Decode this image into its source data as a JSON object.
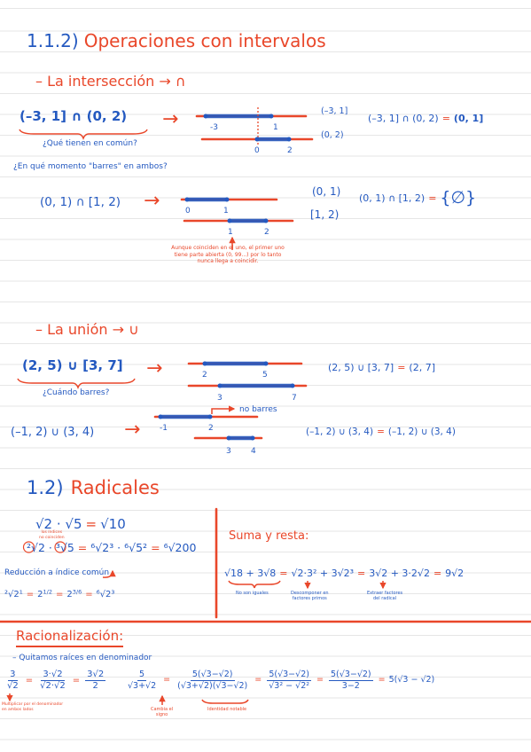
{
  "colors": {
    "blue": "#2459c0",
    "red": "#e9472a",
    "rule": "#e6e6e6"
  },
  "symbols": {
    "eq": "=",
    "arrow": "→"
  },
  "intervals": {
    "number": "1.1.2)",
    "title": "Operaciones con intervalos",
    "intersection": {
      "heading": "– La intersección → ∩",
      "example_1": {
        "expr": "(–3, 1] ∩ (0, 2)",
        "question": "¿Qué tienen en común?",
        "ticks_top": [
          "-3",
          "1"
        ],
        "ticks_bottom": [
          "0",
          "2"
        ],
        "interval_top": "(–3, 1]",
        "interval_bottom": "(0, 2)",
        "result_lhs": "(–3, 1] ∩ (0, 2)",
        "result_rhs": "(0, 1]"
      },
      "question": "¿En qué momento \"barres\" en ambos?",
      "example_2": {
        "expr": "(0, 1) ∩ [1, 2)",
        "ticks_top": [
          "0",
          "1"
        ],
        "ticks_bottom": [
          "1",
          "2"
        ],
        "interval_top": "(0, 1)",
        "interval_bottom": "[1, 2)",
        "result_lhs": "(0, 1) ∩ [1, 2)",
        "result_rhs": "{∅}",
        "note": [
          "Aunque coinciden en el uno, el primer uno",
          "tiene parte abierta (0, 99...) por lo tanto",
          "nunca llega a coincidir."
        ]
      }
    },
    "union": {
      "heading": "– La unión → ∪",
      "example_1": {
        "expr": "(2, 5) ∪ [3, 7]",
        "question": "¿Cuándo barres?",
        "ticks_top": [
          "2",
          "5"
        ],
        "ticks_bottom": [
          "3",
          "7"
        ],
        "result_lhs": "(2, 5) ∪ [3, 7]",
        "result_rhs": "(2, 7]"
      },
      "example_2": {
        "expr": "(–1, 2) ∪ (3, 4)",
        "ticks_top": [
          "-1",
          "2"
        ],
        "ticks_bottom": [
          "3",
          "4"
        ],
        "callout": "no barres",
        "result_lhs": "(–1, 2) ∪ (3, 4)",
        "result_rhs": "(–1, 2) ∪ (3, 4)"
      }
    }
  },
  "radicals": {
    "number": "1.2)",
    "title": "Radicales",
    "product": {
      "lhs": "√2 · √5",
      "rhs": "√10"
    },
    "index_product": {
      "parts": [
        "²√2 · ³√5",
        "⁶√2³ · ⁶√5²",
        "⁶√200"
      ],
      "annotation": [
        "los índices",
        "no coinciden"
      ]
    },
    "reduction_label": "Reducción a índice común",
    "rule": {
      "first": "²√2¹",
      "powers": [
        {
          "base": "2",
          "exp": "1/2"
        },
        {
          "base": "2",
          "exp": "3/6"
        }
      ],
      "last": "⁶√2³"
    },
    "sum": {
      "label": "Suma y resta:",
      "parts": [
        "√18 + 3√8",
        "√2·3² + 3√2³",
        "3√2 + 3·2√2",
        "9√2"
      ],
      "notes": [
        [
          "No son iguales"
        ],
        [
          "Descomponer en",
          "factores primos"
        ],
        [
          "Extraer factores",
          "del radical"
        ]
      ]
    }
  },
  "rationalization": {
    "title": "Racionalización:",
    "subtitle": "– Quitamos raíces en denominador",
    "example_1": {
      "fractions": [
        {
          "num": "3",
          "den": "√2"
        },
        {
          "num": "3·√2",
          "den": "√2·√2"
        },
        {
          "num": "3√2",
          "den": "2"
        }
      ],
      "note": [
        "Multiplicar por el denominador",
        "en ambos lados"
      ]
    },
    "example_2": {
      "fractions": [
        {
          "num": "5",
          "den": "√3+√2"
        },
        {
          "num": "5(√3−√2)",
          "den": "(√3+√2)(√3−√2)"
        },
        {
          "num": "5(√3−√2)",
          "den": "√3² − √2²"
        },
        {
          "num": "5(√3−√2)",
          "den": "3−2"
        }
      ],
      "result": "5(√3 − √2)",
      "notes": [
        [
          "Cambia el",
          "signo"
        ],
        [
          "Identidad notable"
        ]
      ]
    }
  }
}
